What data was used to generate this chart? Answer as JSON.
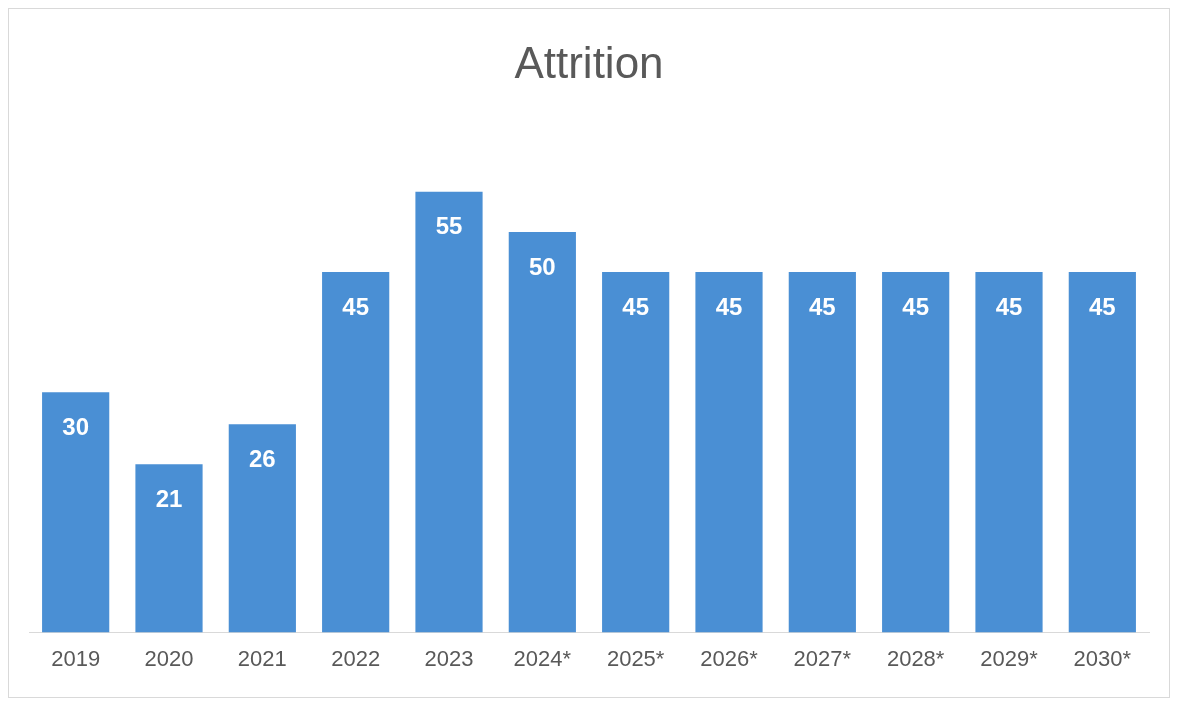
{
  "chart_data": {
    "type": "bar",
    "title": "Attrition",
    "categories": [
      "2019",
      "2020",
      "2021",
      "2022",
      "2023",
      "2024*",
      "2025*",
      "2026*",
      "2027*",
      "2028*",
      "2029*",
      "2030*"
    ],
    "values": [
      30,
      21,
      26,
      45,
      55,
      50,
      45,
      45,
      45,
      45,
      45,
      45
    ],
    "color": "#4a8fd4",
    "data_labels": true,
    "grid": false,
    "legend": false
  }
}
